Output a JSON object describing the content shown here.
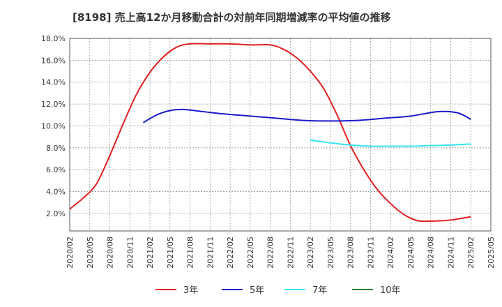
{
  "chart_data": {
    "type": "line",
    "title": "[8198]  売上高12か月移動合計の対前年同期増減率の平均値の推移",
    "xlabel": "",
    "ylabel": "",
    "ylim": [
      0.4,
      18.0
    ],
    "y_ticks": [
      "2.0%",
      "4.0%",
      "6.0%",
      "8.0%",
      "10.0%",
      "12.0%",
      "14.0%",
      "16.0%",
      "18.0%"
    ],
    "y_tick_values": [
      2,
      4,
      6,
      8,
      10,
      12,
      14,
      16,
      18
    ],
    "x_ticks": [
      "2020/02",
      "2020/05",
      "2020/08",
      "2020/11",
      "2021/02",
      "2021/05",
      "2021/08",
      "2021/11",
      "2022/02",
      "2022/05",
      "2022/08",
      "2022/11",
      "2023/02",
      "2023/05",
      "2023/08",
      "2023/11",
      "2024/02",
      "2024/05",
      "2024/08",
      "2024/11",
      "2025/02",
      "2025/05"
    ],
    "grid": true,
    "legend_position": "bottom",
    "series": [
      {
        "name": "3年",
        "color": "#e02020",
        "points": [
          [
            "2020/02",
            2.4
          ],
          [
            "2020/04",
            3.4
          ],
          [
            "2020/06",
            4.7
          ],
          [
            "2020/08",
            7.3
          ],
          [
            "2020/10",
            10.2
          ],
          [
            "2020/12",
            12.9
          ],
          [
            "2021/02",
            14.9
          ],
          [
            "2021/04",
            16.3
          ],
          [
            "2021/06",
            17.2
          ],
          [
            "2021/08",
            17.5
          ],
          [
            "2021/11",
            17.5
          ],
          [
            "2022/02",
            17.5
          ],
          [
            "2022/05",
            17.4
          ],
          [
            "2022/08",
            17.4
          ],
          [
            "2022/10",
            17.0
          ],
          [
            "2022/12",
            16.2
          ],
          [
            "2023/02",
            15.0
          ],
          [
            "2023/04",
            13.4
          ],
          [
            "2023/06",
            11.0
          ],
          [
            "2023/08",
            8.2
          ],
          [
            "2023/10",
            6.0
          ],
          [
            "2023/12",
            4.2
          ],
          [
            "2024/02",
            2.9
          ],
          [
            "2024/04",
            1.9
          ],
          [
            "2024/06",
            1.35
          ],
          [
            "2024/08",
            1.3
          ],
          [
            "2024/11",
            1.4
          ],
          [
            "2025/02",
            1.7
          ]
        ]
      },
      {
        "name": "5年",
        "color": "#1a1acc",
        "points": [
          [
            "2021/01",
            10.3
          ],
          [
            "2021/03",
            11.0
          ],
          [
            "2021/05",
            11.4
          ],
          [
            "2021/07",
            11.5
          ],
          [
            "2021/10",
            11.3
          ],
          [
            "2022/01",
            11.1
          ],
          [
            "2022/05",
            10.9
          ],
          [
            "2022/09",
            10.7
          ],
          [
            "2023/01",
            10.5
          ],
          [
            "2023/05",
            10.45
          ],
          [
            "2023/09",
            10.5
          ],
          [
            "2024/01",
            10.7
          ],
          [
            "2024/05",
            10.9
          ],
          [
            "2024/09",
            11.3
          ],
          [
            "2024/12",
            11.2
          ],
          [
            "2025/02",
            10.6
          ]
        ]
      },
      {
        "name": "7年",
        "color": "#33e5f2",
        "points": [
          [
            "2023/02",
            8.7
          ],
          [
            "2023/05",
            8.45
          ],
          [
            "2023/08",
            8.25
          ],
          [
            "2023/11",
            8.15
          ],
          [
            "2024/02",
            8.15
          ],
          [
            "2024/05",
            8.15
          ],
          [
            "2024/08",
            8.2
          ],
          [
            "2024/11",
            8.25
          ],
          [
            "2025/02",
            8.35
          ]
        ]
      },
      {
        "name": "10年",
        "color": "#2a8a2a",
        "points": []
      }
    ]
  }
}
